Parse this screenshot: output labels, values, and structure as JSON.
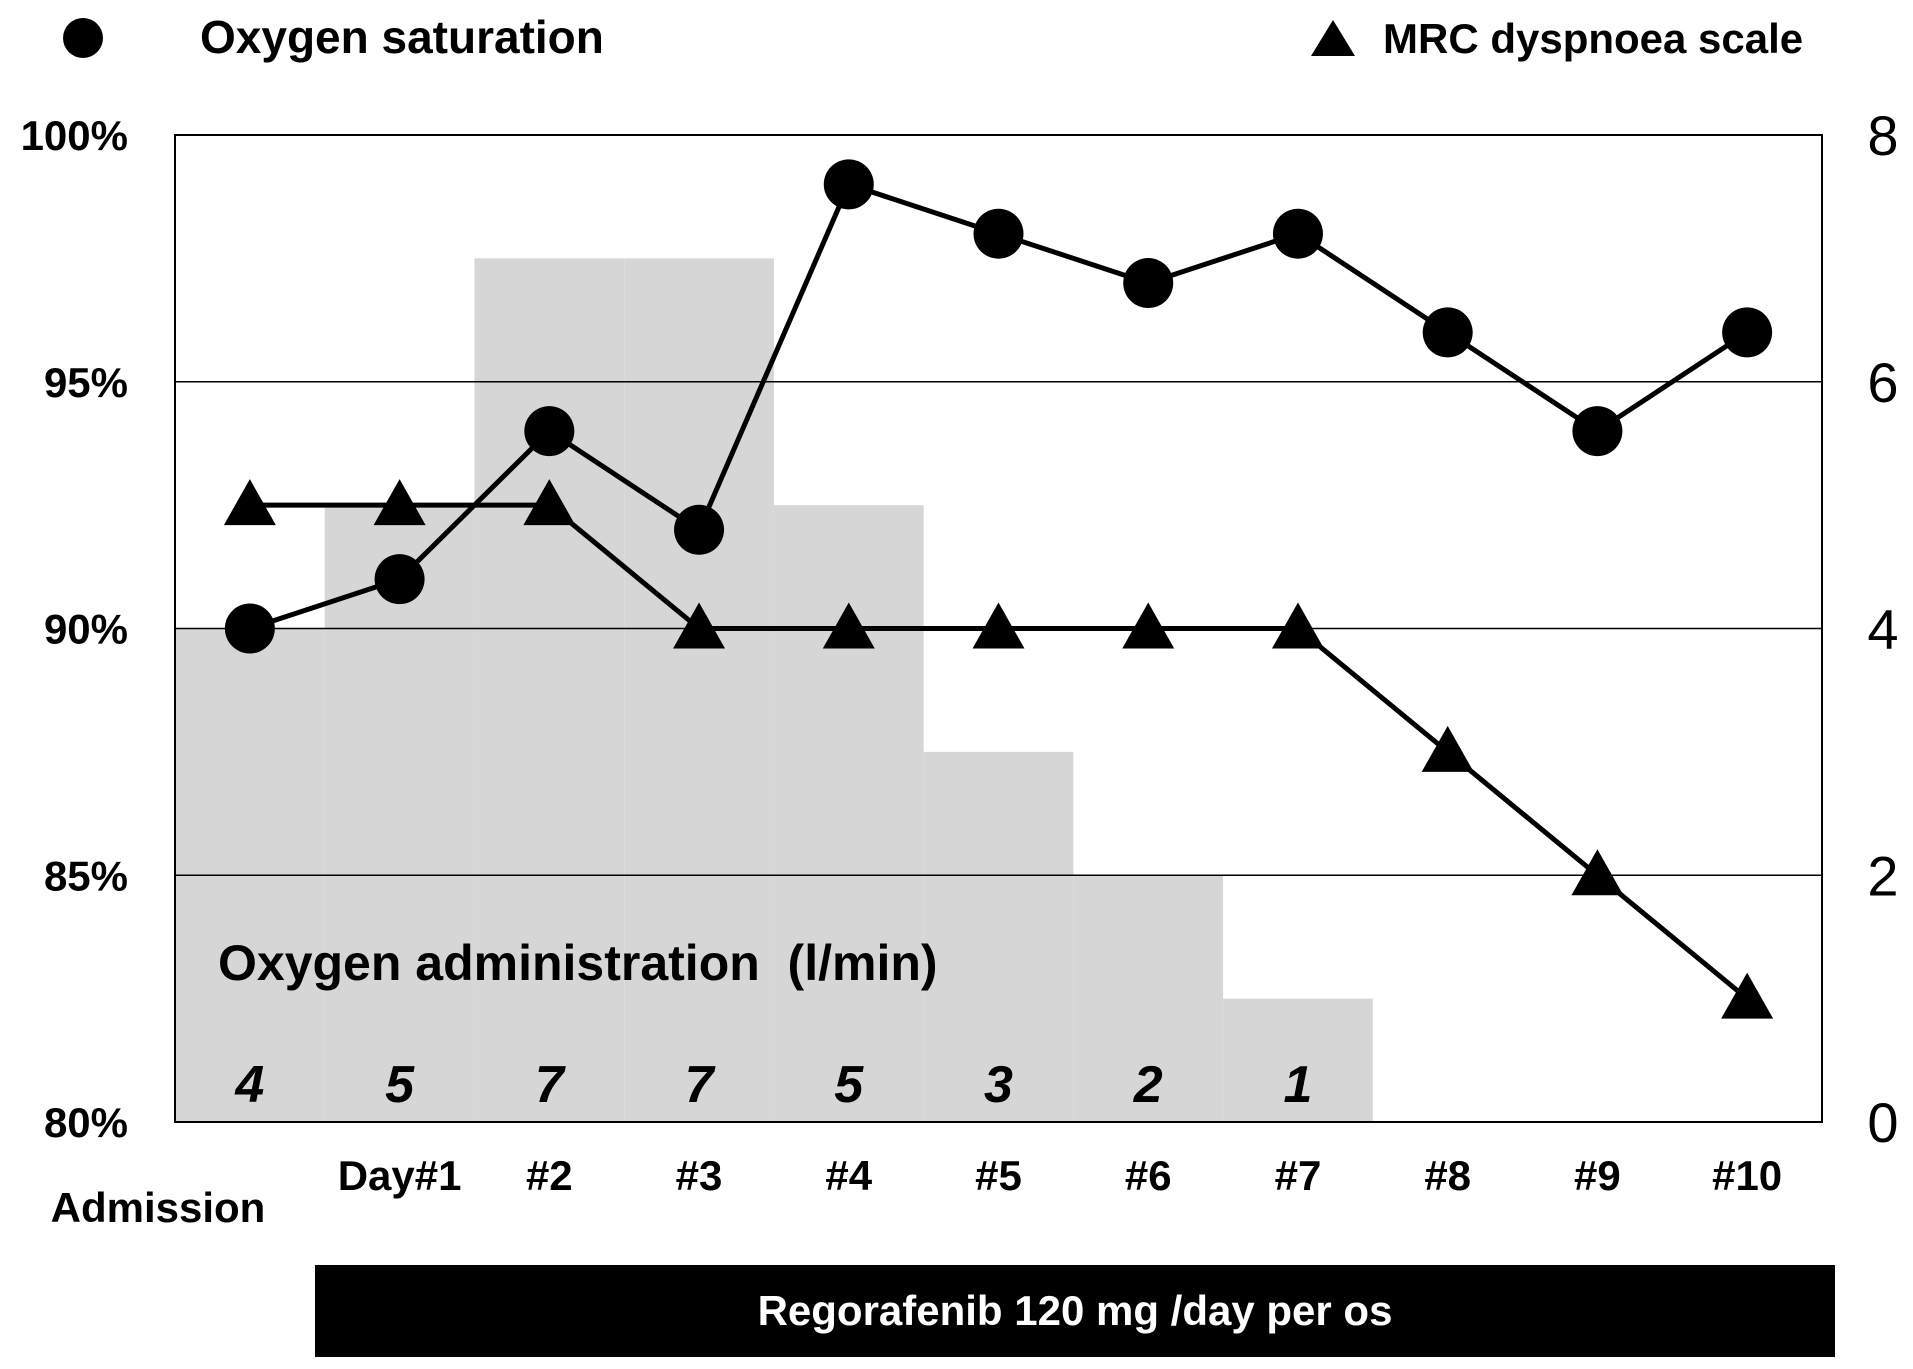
{
  "chart_data": {
    "type": "line",
    "legend": {
      "o2_label": "Oxygen saturation",
      "mrc_label": "MRC dyspnoea scale",
      "placement": "top"
    },
    "categories": [
      "Admission",
      "Day#1",
      "#2",
      "#3",
      "#4",
      "#5",
      "#6",
      "#7",
      "#8",
      "#9",
      "#10"
    ],
    "left_axis": {
      "min": 80,
      "max": 100,
      "ticks": [
        80,
        85,
        90,
        95,
        100
      ],
      "tick_labels": [
        "80%",
        "85%",
        "90%",
        "95%",
        "100%"
      ]
    },
    "right_axis": {
      "min": 0,
      "max": 8,
      "ticks": [
        0,
        2,
        4,
        6,
        8
      ],
      "tick_labels": [
        "0",
        "2",
        "4",
        "6",
        "8"
      ]
    },
    "gridlines": [
      85,
      90,
      95
    ],
    "series": [
      {
        "name": "Oxygen saturation",
        "axis": "left",
        "marker": "circle",
        "unit": "%",
        "values": [
          90,
          91,
          94,
          92,
          99,
          98,
          97,
          98,
          96,
          94,
          96
        ]
      },
      {
        "name": "MRC dyspnoea scale",
        "axis": "right",
        "marker": "triangle",
        "values": [
          5,
          5,
          5,
          4,
          4,
          4,
          4,
          4,
          3,
          2,
          1
        ]
      }
    ],
    "oxygen_administration": {
      "label": "Oxygen administration  (l/min)",
      "axis": "right",
      "values": [
        4,
        5,
        7,
        7,
        5,
        3,
        2,
        1,
        null,
        null,
        null
      ],
      "bar_levels": [
        4,
        5,
        7,
        7,
        5,
        3,
        2,
        1,
        0,
        0,
        0
      ],
      "color": "#d6d6d6"
    },
    "treatment_bar": {
      "label": "Regorafenib 120 mg /day per os",
      "from_category": "Day#1",
      "to_category": "#10",
      "color": "#000000"
    }
  }
}
